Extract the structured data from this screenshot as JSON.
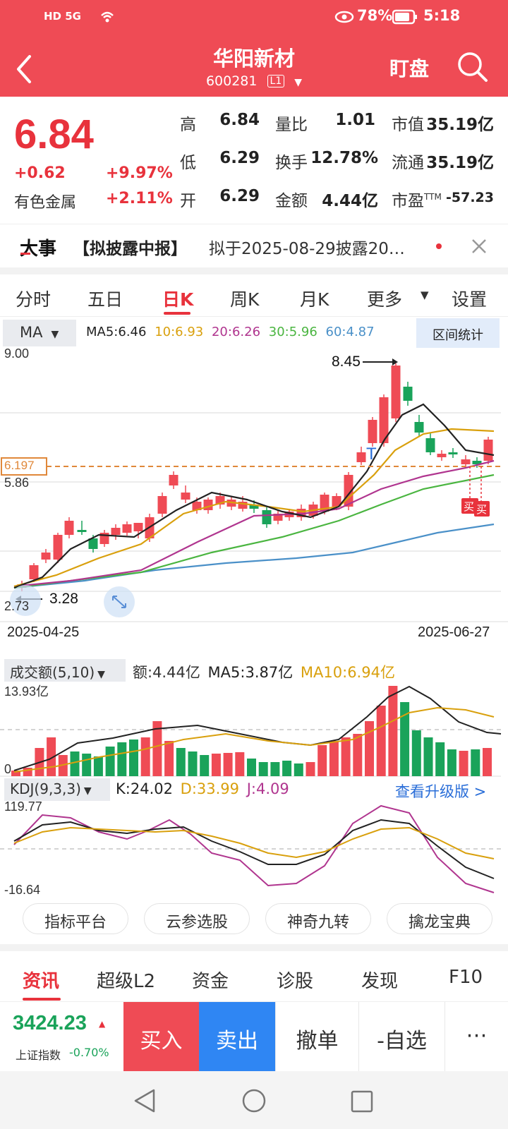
{
  "status_bar": {
    "left": "HD 5G",
    "battery": "78%",
    "time": "5:18"
  },
  "header": {
    "title": "华阳新材",
    "code": "600281",
    "level": "L1",
    "watch_label": "盯盘"
  },
  "quote": {
    "price": "6.84",
    "change": "+0.62",
    "change_pct": "+9.97%",
    "sector": "有色金属",
    "sector_pct": "+2.11%",
    "labels": {
      "high": "高",
      "low": "低",
      "open": "开",
      "vol_ratio": "量比",
      "turnover": "换手",
      "amount": "金额",
      "mkt_cap": "市值",
      "float_cap": "流通",
      "pe": "市盈",
      "pe_sup": "TTM"
    },
    "high": "6.84",
    "low": "6.29",
    "open": "6.29",
    "vol_ratio": "1.01",
    "turnover": "12.78%",
    "amount": "4.44亿",
    "mkt_cap": "35.19亿",
    "float_cap": "35.19亿",
    "pe": "-57.23"
  },
  "news": {
    "tag": "大事",
    "category": "【拟披露中报】",
    "text": "拟于2025-08-29披露20…"
  },
  "chart_tabs": {
    "items": [
      "分时",
      "五日",
      "日K",
      "周K",
      "月K",
      "更多",
      "设置"
    ],
    "active": "日K"
  },
  "ma_bar": {
    "selector": "MA",
    "ma5": "MA5:6.46",
    "ma10": "10:6.93",
    "ma20": "20:6.26",
    "ma30": "30:5.96",
    "ma60": "60:4.87",
    "range_label": "区间统计",
    "colors": {
      "ma5": "#222222",
      "ma10": "#d9a00d",
      "ma20": "#b0358f",
      "ma30": "#4ab540",
      "ma60": "#4a90c8"
    }
  },
  "kline": {
    "y_top": "9.00",
    "y_mid": "5.86",
    "y_bottom": "2.73",
    "current_price_label": "6.197",
    "high_mark": "8.45",
    "low_mark": "3.28",
    "date_start": "2025-04-25",
    "date_end": "2025-06-27",
    "buy_tag_1": "买",
    "buy_tag_2": "买",
    "colors": {
      "up": "#ef4b55",
      "down": "#1aa35a"
    }
  },
  "volume": {
    "selector": "成交额(5,10)",
    "amount": "额:4.44亿",
    "ma5": "MA5:3.87亿",
    "ma10": "MA10:6.94亿",
    "y_top": "13.93亿",
    "y_bottom": "0"
  },
  "kdj": {
    "selector": "KDJ(9,3,3)",
    "k": "K:24.02",
    "d": "D:33.99",
    "j": "J:4.09",
    "y_top": "119.77",
    "y_bottom": "-16.64",
    "upgrade": "查看升级版 >",
    "colors": {
      "k": "#222222",
      "d": "#d9a00d",
      "j": "#b0358f"
    }
  },
  "tools": [
    "指标平台",
    "云参选股",
    "神奇九转",
    "擒龙宝典"
  ],
  "info_tabs": {
    "items": [
      "资讯",
      "超级L2",
      "资金",
      "诊股",
      "发现",
      "F10"
    ],
    "active": "资讯"
  },
  "trade_bar": {
    "index_value": "3424.23",
    "index_name": "上证指数",
    "index_change": "-0.70%",
    "buy": "买入",
    "sell": "卖出",
    "cancel": "撤单",
    "watchlist": "-自选",
    "more": "⋯"
  }
}
